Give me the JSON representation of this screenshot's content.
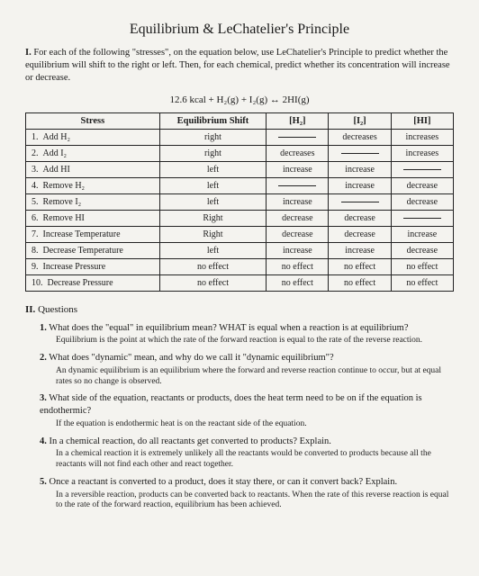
{
  "title": "Equilibrium & LeChatelier's Principle",
  "section1": {
    "label": "I.",
    "intro": "For each of the following \"stresses\", on the equation below, use LeChatelier's Principle to predict whether the equilibrium will shift to the right or left. Then, for each chemical, predict whether its concentration will increase or decrease.",
    "equation": "12.6 kcal  +  H₂(g)  +  I₂(g)  ↔  2HI(g)"
  },
  "table": {
    "headers": [
      "Stress",
      "Equilibrium Shift",
      "[H₂]",
      "[I₂]",
      "[HI]"
    ],
    "rows": [
      {
        "n": "1.",
        "stress": "Add H₂",
        "shift": "right",
        "h2": "—",
        "i2": "decreases",
        "hi": "increases"
      },
      {
        "n": "2.",
        "stress": "Add I₂",
        "shift": "right",
        "h2": "decreases",
        "i2": "—",
        "hi": "increases"
      },
      {
        "n": "3.",
        "stress": "Add HI",
        "shift": "left",
        "h2": "increase",
        "i2": "increase",
        "hi": "—"
      },
      {
        "n": "4.",
        "stress": "Remove H₂",
        "shift": "left",
        "h2": "—",
        "i2": "increase",
        "hi": "decrease"
      },
      {
        "n": "5.",
        "stress": "Remove I₂",
        "shift": "left",
        "h2": "increase",
        "i2": "—",
        "hi": "decrease"
      },
      {
        "n": "6.",
        "stress": "Remove HI",
        "shift": "Right",
        "h2": "decrease",
        "i2": "decrease",
        "hi": "—"
      },
      {
        "n": "7.",
        "stress": "Increase Temperature",
        "shift": "Right",
        "h2": "decrease",
        "i2": "decrease",
        "hi": "increase"
      },
      {
        "n": "8.",
        "stress": "Decrease Temperature",
        "shift": "left",
        "h2": "increase",
        "i2": "increase",
        "hi": "decrease"
      },
      {
        "n": "9.",
        "stress": "Increase Pressure",
        "shift": "no effect",
        "h2": "no effect",
        "i2": "no effect",
        "hi": "no effect"
      },
      {
        "n": "10.",
        "stress": "Decrease Pressure",
        "shift": "no effect",
        "h2": "no effect",
        "i2": "no effect",
        "hi": "no effect"
      }
    ]
  },
  "section2": {
    "label": "II.",
    "heading": "Questions",
    "items": [
      {
        "n": "1.",
        "q": "What does the \"equal\" in equilibrium mean?  WHAT is equal when a reaction is at equilibrium?",
        "a": "Equilibrium is the point at which the rate of the forward reaction is equal to the rate of the reverse reaction."
      },
      {
        "n": "2.",
        "q": "What does \"dynamic\" mean, and why do we call it \"dynamic equilibrium\"?",
        "a": "An dynamic equilibrium is an equilibrium where the forward and reverse reaction continue to occur, but at equal rates so no change is observed."
      },
      {
        "n": "3.",
        "q": "What side of the equation, reactants or products, does the heat term need to be on if the equation is endothermic?",
        "a": "If the equation is endothermic heat is on the reactant side of the equation."
      },
      {
        "n": "4.",
        "q": "In a chemical reaction, do all reactants get converted to products?  Explain.",
        "a": "In a chemical reaction it is extremely unlikely all the reactants would be converted to products because all the reactants will not find each other and react together."
      },
      {
        "n": "5.",
        "q": "Once a reactant is converted to a product, does it stay there, or can it convert back?  Explain.",
        "a": "In a reversible reaction, products can be converted back to reactants. When the rate of this reverse reaction is equal to the rate of the forward reaction, equilibrium has been achieved."
      }
    ]
  }
}
